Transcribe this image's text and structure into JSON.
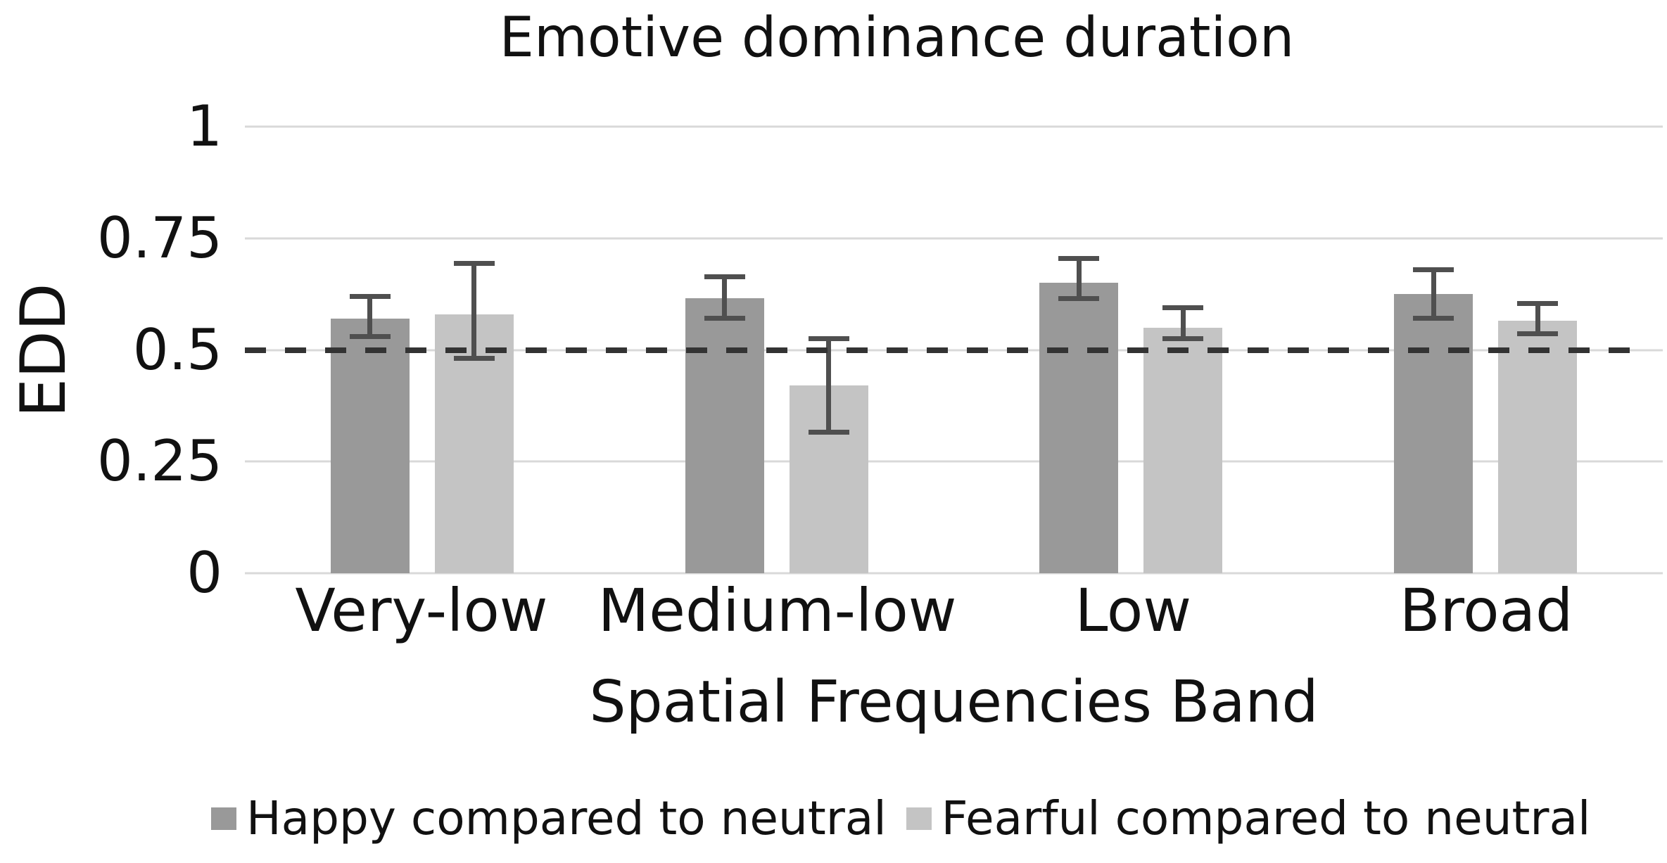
{
  "chart_data": {
    "type": "bar",
    "title": "Emotive dominance duration",
    "xlabel": "Spatial Frequencies Band",
    "ylabel": "EDD",
    "categories": [
      "Very-low",
      "Medium-low",
      "Low",
      "Broad"
    ],
    "series": [
      {
        "name": "Happy compared to neutral",
        "color": "#999999",
        "values": [
          0.57,
          0.615,
          0.65,
          0.625
        ],
        "error_low": [
          0.525,
          0.565,
          0.61,
          0.565
        ],
        "error_high": [
          0.625,
          0.67,
          0.71,
          0.685
        ]
      },
      {
        "name": "Fearful compared to neutral",
        "color": "#c4c4c4",
        "values": [
          0.58,
          0.42,
          0.55,
          0.565
        ],
        "error_low": [
          0.475,
          0.31,
          0.52,
          0.53
        ],
        "error_high": [
          0.7,
          0.53,
          0.6,
          0.61
        ]
      }
    ],
    "ylim": [
      0,
      1
    ],
    "yticks": [
      0,
      0.25,
      0.5,
      0.75,
      1
    ],
    "ytick_labels": [
      "0",
      "0.25",
      "0.5",
      "0.75",
      "1"
    ],
    "reference_line": {
      "value": 0.5,
      "style": "dashed",
      "color": "#333333"
    },
    "grid": true,
    "legend_position": "bottom",
    "colors": {
      "error_bar": "#4f4f4f",
      "gridline": "#d9d9d9",
      "text": "#111111",
      "background": "#ffffff"
    }
  }
}
